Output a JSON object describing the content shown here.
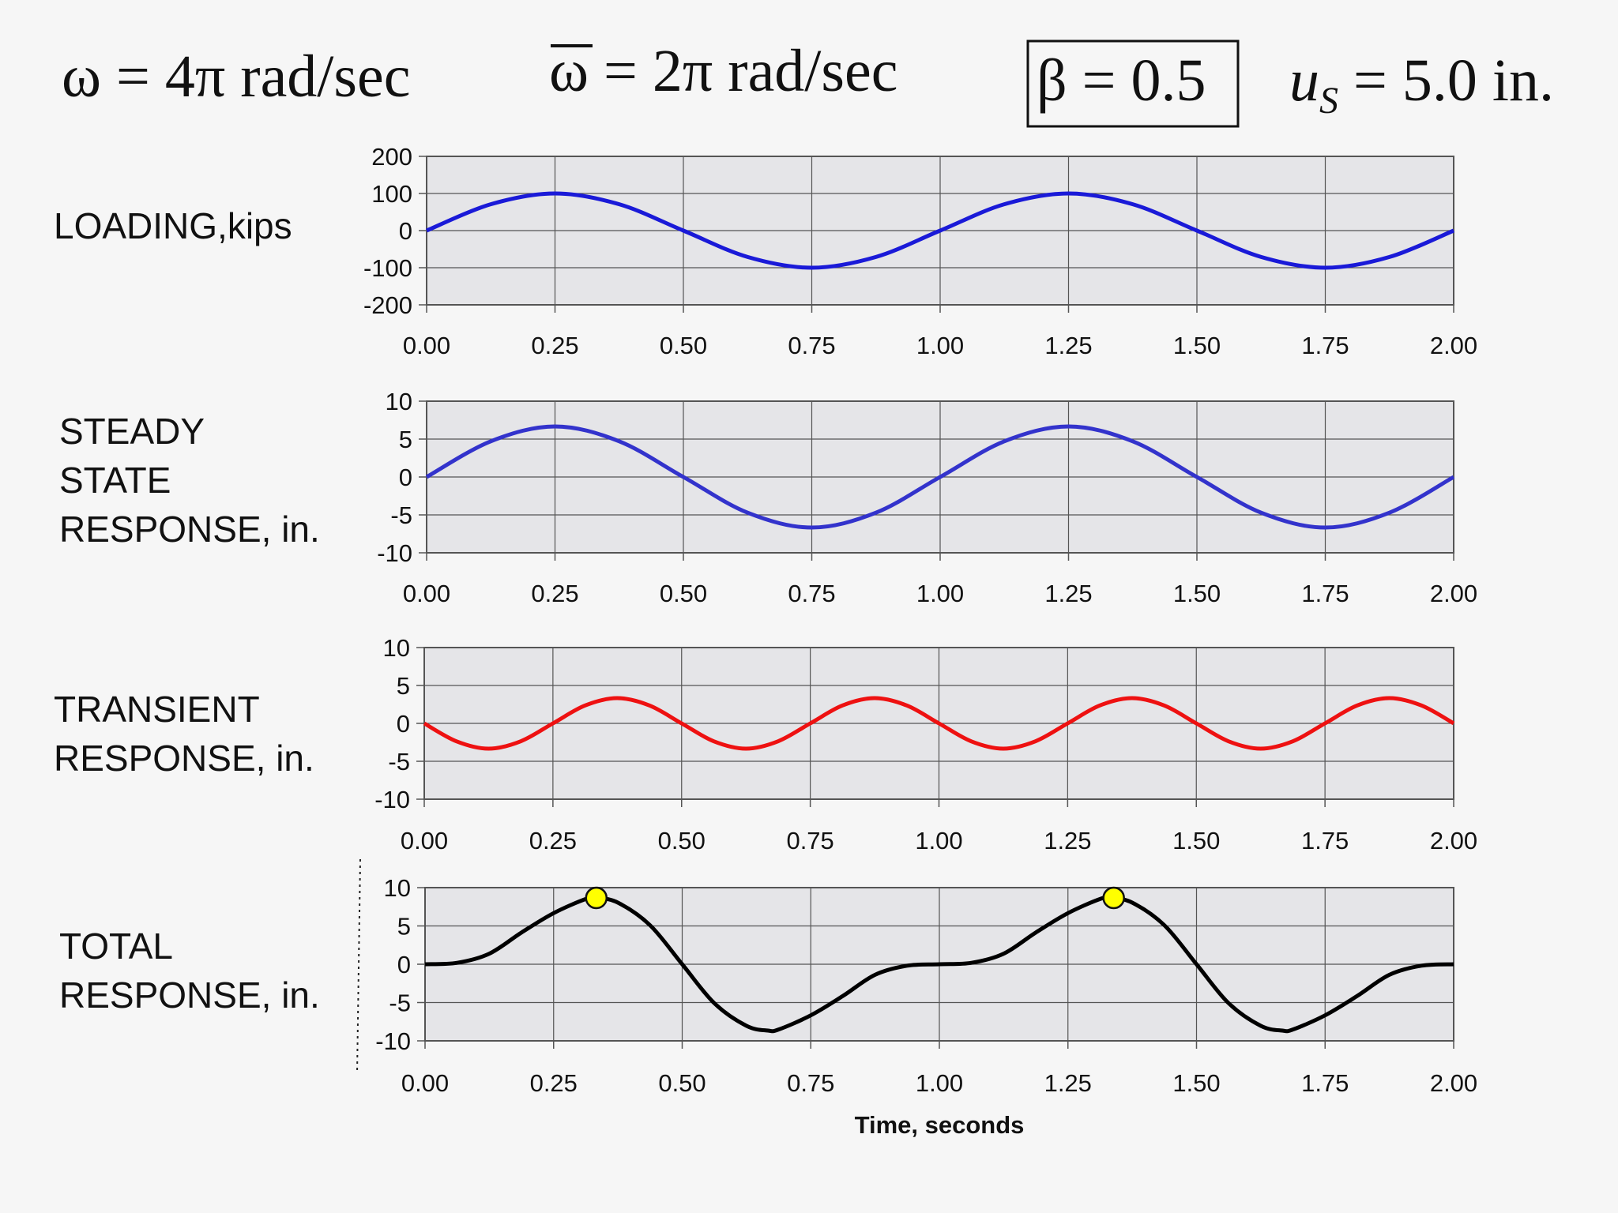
{
  "header": {
    "omega": "ω = 4π rad/sec",
    "omega_bar_symbol": "ω",
    "omega_bar_rest": " = 2π rad/sec",
    "beta": "β = 0.5",
    "us_u": "u",
    "us_sub": "S",
    "us_rest": " = 5.0 in."
  },
  "colors": {
    "background": "#f6f6f6",
    "plot_area": "#e5e5e8",
    "grid": "#555555",
    "loading": "#1a1ad8",
    "steady": "#3333cc",
    "transient": "#ee1111",
    "total": "#000000",
    "marker": "#ffff00"
  },
  "chart_data": [
    {
      "type": "line",
      "name": "loading",
      "label_lines": [
        "LOADING,kips"
      ],
      "xlim": [
        0,
        2
      ],
      "ylim": [
        -200,
        200
      ],
      "yticks": [
        "200",
        "100",
        "0",
        "-100",
        "-200"
      ],
      "xticks": [
        "0.00",
        "0.25",
        "0.50",
        "0.75",
        "1.00",
        "1.25",
        "1.50",
        "1.75",
        "2.00"
      ],
      "grid": true,
      "x": [
        0,
        0.125,
        0.25,
        0.375,
        0.5,
        0.625,
        0.75,
        0.875,
        1.0,
        1.125,
        1.25,
        1.375,
        1.5,
        1.625,
        1.75,
        1.875,
        2.0
      ],
      "y": [
        0,
        71,
        100,
        71,
        0,
        -71,
        -100,
        -71,
        0,
        71,
        100,
        71,
        0,
        -71,
        -100,
        -71,
        0
      ],
      "color": "#1a1ad8"
    },
    {
      "type": "line",
      "name": "steady",
      "label_lines": [
        "STEADY",
        "STATE",
        "RESPONSE, in."
      ],
      "xlim": [
        0,
        2
      ],
      "ylim": [
        -10,
        10
      ],
      "yticks": [
        "10",
        "5",
        "0",
        "-5",
        "-10"
      ],
      "xticks": [
        "0.00",
        "0.25",
        "0.50",
        "0.75",
        "1.00",
        "1.25",
        "1.50",
        "1.75",
        "2.00"
      ],
      "grid": true,
      "x": [
        0,
        0.125,
        0.25,
        0.375,
        0.5,
        0.625,
        0.75,
        0.875,
        1.0,
        1.125,
        1.25,
        1.375,
        1.5,
        1.625,
        1.75,
        1.875,
        2.0
      ],
      "y": [
        0,
        4.71,
        6.67,
        4.71,
        0,
        -4.71,
        -6.67,
        -4.71,
        0,
        4.71,
        6.67,
        4.71,
        0,
        -4.71,
        -6.67,
        -4.71,
        0
      ],
      "color": "#3333cc"
    },
    {
      "type": "line",
      "name": "transient",
      "label_lines": [
        "TRANSIENT",
        "RESPONSE, in."
      ],
      "xlim": [
        0,
        2
      ],
      "ylim": [
        -10,
        10
      ],
      "yticks": [
        "10",
        "5",
        "0",
        "-5",
        "-10"
      ],
      "xticks": [
        "0.00",
        "0.25",
        "0.50",
        "0.75",
        "1.00",
        "1.25",
        "1.50",
        "1.75",
        "2.00"
      ],
      "grid": true,
      "x": [
        0,
        0.0625,
        0.125,
        0.1875,
        0.25,
        0.3125,
        0.375,
        0.4375,
        0.5,
        0.5625,
        0.625,
        0.6875,
        0.75,
        0.8125,
        0.875,
        0.9375,
        1.0,
        1.0625,
        1.125,
        1.1875,
        1.25,
        1.3125,
        1.375,
        1.4375,
        1.5,
        1.5625,
        1.625,
        1.6875,
        1.75,
        1.8125,
        1.875,
        1.9375,
        2.0
      ],
      "y": [
        0,
        -2.36,
        -3.33,
        -2.36,
        0,
        2.36,
        3.33,
        2.36,
        0,
        -2.36,
        -3.33,
        -2.36,
        0,
        2.36,
        3.33,
        2.36,
        0,
        -2.36,
        -3.33,
        -2.36,
        0,
        2.36,
        3.33,
        2.36,
        0,
        -2.36,
        -3.33,
        -2.36,
        0,
        2.36,
        3.33,
        2.36,
        0
      ],
      "color": "#ee1111"
    },
    {
      "type": "line",
      "name": "total",
      "label_lines": [
        "TOTAL",
        "RESPONSE, in."
      ],
      "xlim": [
        0,
        2
      ],
      "ylim": [
        -10,
        10
      ],
      "yticks": [
        "10",
        "5",
        "0",
        "-5",
        "-10"
      ],
      "xticks": [
        "0.00",
        "0.25",
        "0.50",
        "0.75",
        "1.00",
        "1.25",
        "1.50",
        "1.75",
        "2.00"
      ],
      "xlabel": "Time, seconds",
      "grid": true,
      "x": [
        0,
        0.0625,
        0.125,
        0.1875,
        0.25,
        0.3125,
        0.333,
        0.375,
        0.4375,
        0.5,
        0.5625,
        0.625,
        0.667,
        0.6875,
        0.75,
        0.8125,
        0.875,
        0.9375,
        1.0,
        1.0625,
        1.125,
        1.1875,
        1.25,
        1.3125,
        1.333,
        1.375,
        1.4375,
        1.5,
        1.5625,
        1.625,
        1.667,
        1.6875,
        1.75,
        1.8125,
        1.875,
        1.9375,
        2.0
      ],
      "y": [
        0,
        0.19,
        1.38,
        4.14,
        6.67,
        8.52,
        8.66,
        8.04,
        5.09,
        0,
        -5.09,
        -8.04,
        -8.66,
        -8.52,
        -6.67,
        -4.14,
        -1.38,
        -0.19,
        0,
        0.19,
        1.38,
        4.14,
        6.67,
        8.52,
        8.66,
        8.04,
        5.09,
        0,
        -5.09,
        -8.04,
        -8.66,
        -8.52,
        -6.67,
        -4.14,
        -1.38,
        -0.19,
        0
      ],
      "color": "#000000",
      "markers": [
        {
          "x": 0.333,
          "y": 8.66
        },
        {
          "x": 1.339,
          "y": 8.66
        }
      ]
    }
  ]
}
